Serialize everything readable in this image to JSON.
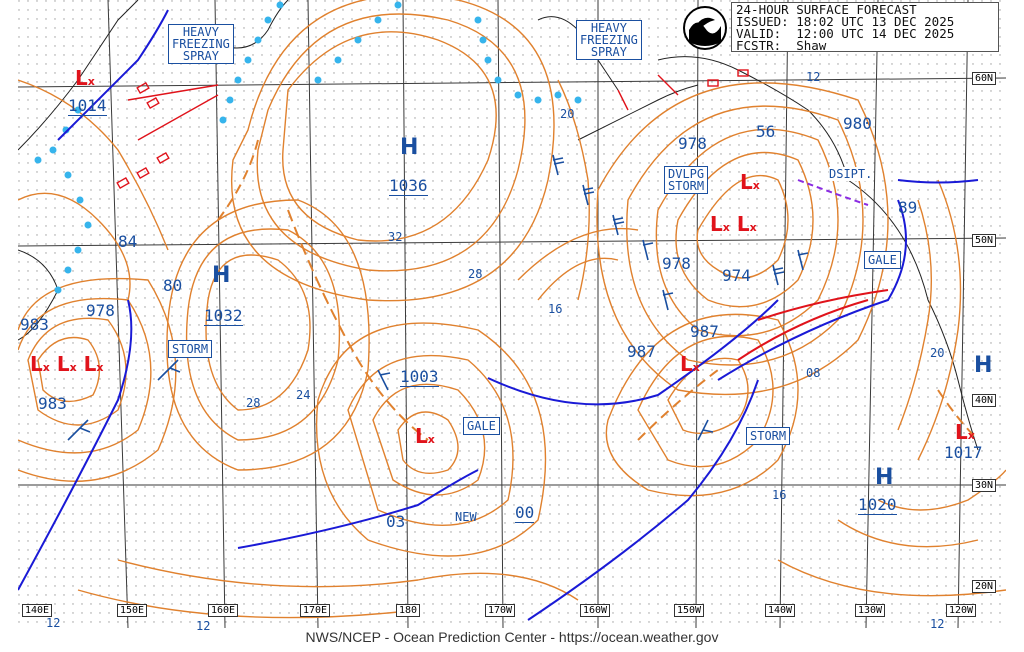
{
  "header": {
    "line1": "24-HOUR SURFACE FORECAST",
    "line2": "ISSUED: 18:02 UTC 13 DEC 2025",
    "line3": "VALID:  12:00 UTC 14 DEC 2025",
    "line4": "FCSTR:  Shaw"
  },
  "footer": {
    "text": "NWS/NCEP - Ocean Prediction Center - https://ocean.weather.gov"
  },
  "longitudes": [
    "140E",
    "150E",
    "160E",
    "170E",
    "180",
    "170W",
    "160W",
    "150W",
    "140W",
    "130W",
    "120W"
  ],
  "latitudes": [
    "60N",
    "50N",
    "40N",
    "30N",
    "20N"
  ],
  "highs": [
    {
      "label": "H",
      "pressure": "1036"
    },
    {
      "label": "H",
      "pressure": "1032"
    },
    {
      "label": "H",
      "pressure": "1020"
    },
    {
      "label": "H",
      "pressure": ""
    }
  ],
  "lows": [
    {
      "pressure": "1014"
    },
    {
      "pressure": "978"
    },
    {
      "pressure": "983"
    },
    {
      "pressure": "983"
    },
    {
      "pressure": "1003"
    },
    {
      "pressure": "987"
    },
    {
      "pressure": "987"
    },
    {
      "pressure": "978"
    },
    {
      "pressure": "978"
    },
    {
      "pressure": "974"
    },
    {
      "pressure": "980"
    },
    {
      "pressure": "1017"
    }
  ],
  "warnings": {
    "spray1": [
      "HEAVY",
      "FREEZING",
      "SPRAY"
    ],
    "spray2": [
      "HEAVY",
      "FREEZING",
      "SPRAY"
    ],
    "storm1": "STORM",
    "storm2": "STORM",
    "gale1": "GALE",
    "gale2": "GALE",
    "dvlpg": [
      "DVLPG",
      "STORM"
    ],
    "dsipt": "DSIPT.",
    "new": "NEW"
  },
  "isobar_labels": [
    "12",
    "20",
    "56",
    "84",
    "80",
    "28",
    "24",
    "32",
    "28",
    "16",
    "00",
    "03",
    "08",
    "16",
    "89",
    "20",
    "12",
    "12",
    "12",
    "20"
  ],
  "colors": {
    "isobar": "#e0812e",
    "low": "#e0131b",
    "front_cold": "#1a1ad6",
    "front_warm": "#e0131b",
    "ice": "#36b4ec",
    "label": "#1a4fa0",
    "occluded": "#8a2be2",
    "grid_dots": "#9a9a9a"
  },
  "logo": "noaa-logo"
}
